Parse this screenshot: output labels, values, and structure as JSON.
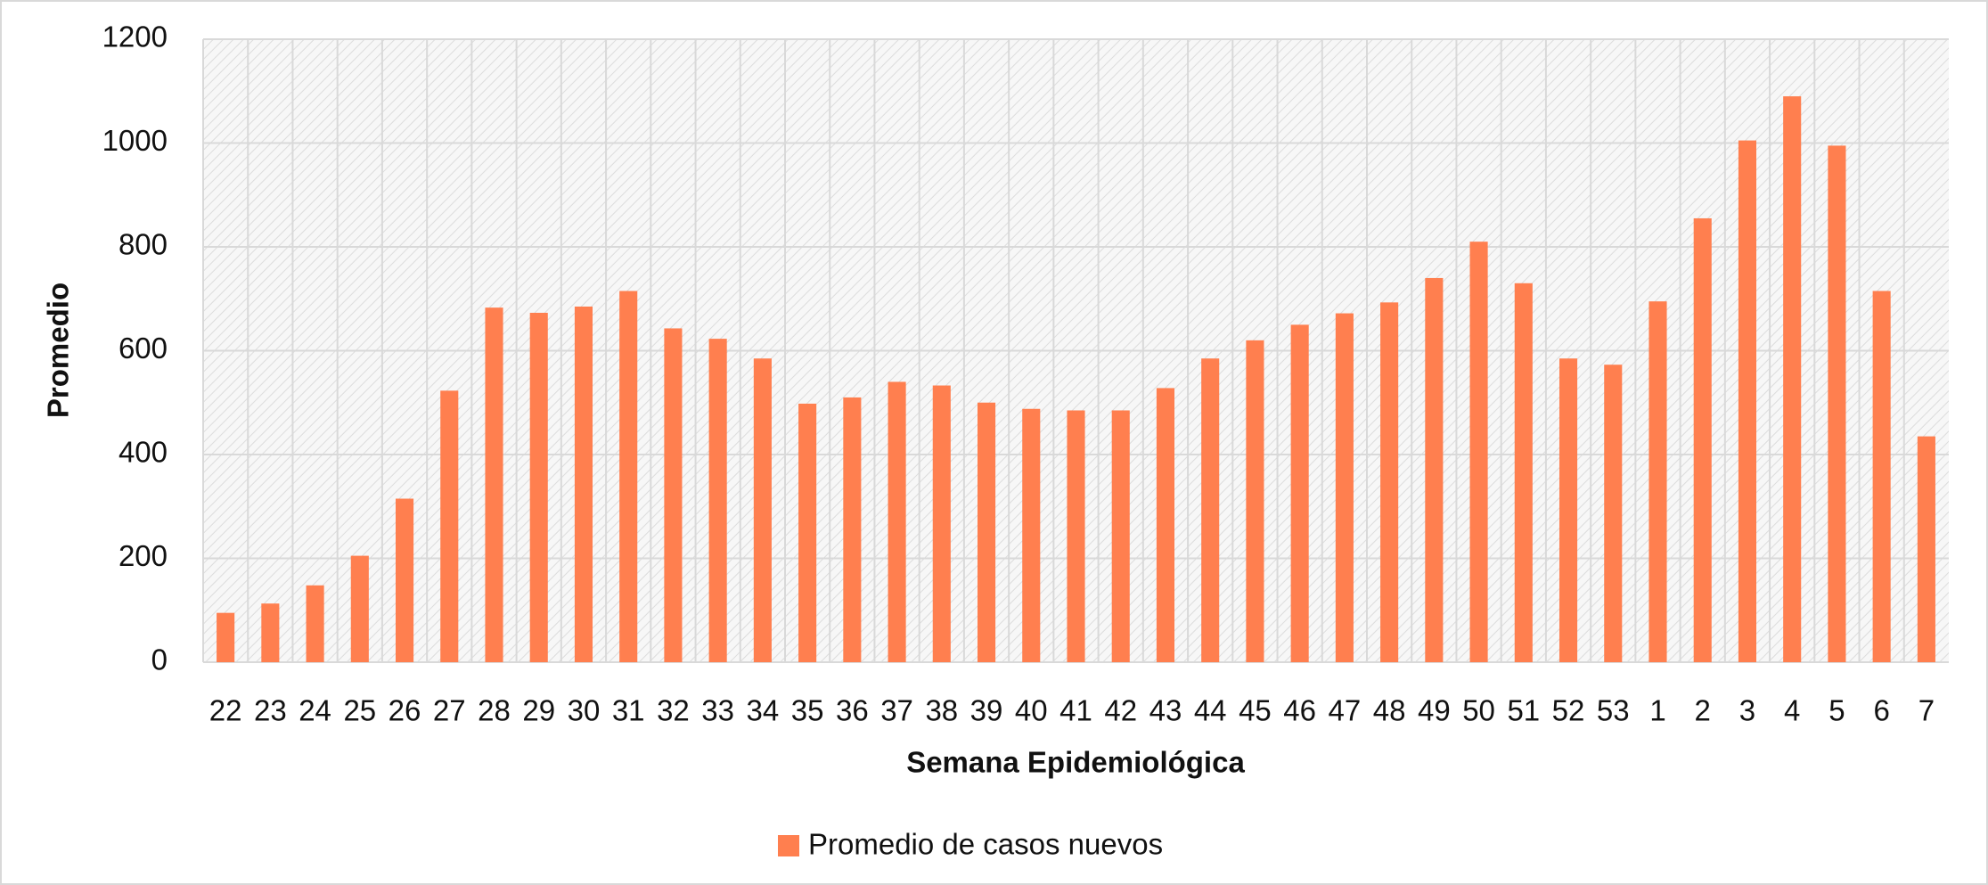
{
  "chart_data": {
    "type": "bar",
    "x_label": "Semana Epidemiológica",
    "y_label": "Promedio",
    "categories": [
      "22",
      "23",
      "24",
      "25",
      "26",
      "27",
      "28",
      "29",
      "30",
      "31",
      "32",
      "33",
      "34",
      "35",
      "36",
      "37",
      "38",
      "39",
      "40",
      "41",
      "42",
      "43",
      "44",
      "45",
      "46",
      "47",
      "48",
      "49",
      "50",
      "51",
      "52",
      "53",
      "1",
      "2",
      "3",
      "4",
      "5",
      "6",
      "7"
    ],
    "series": [
      {
        "name": "Promedio de casos nuevos",
        "color": "#ff7f4f",
        "values": [
          95,
          113,
          148,
          205,
          315,
          523,
          683,
          673,
          685,
          715,
          643,
          623,
          585,
          498,
          510,
          540,
          533,
          500,
          488,
          485,
          485,
          528,
          585,
          620,
          650,
          672,
          693,
          740,
          810,
          730,
          585,
          573,
          695,
          855,
          1005,
          1090,
          995,
          715,
          435
        ]
      }
    ],
    "ylim": [
      0,
      1200
    ],
    "yticks": [
      0,
      200,
      400,
      600,
      800,
      1000,
      1200
    ],
    "grid": true,
    "legend": "bottom"
  }
}
